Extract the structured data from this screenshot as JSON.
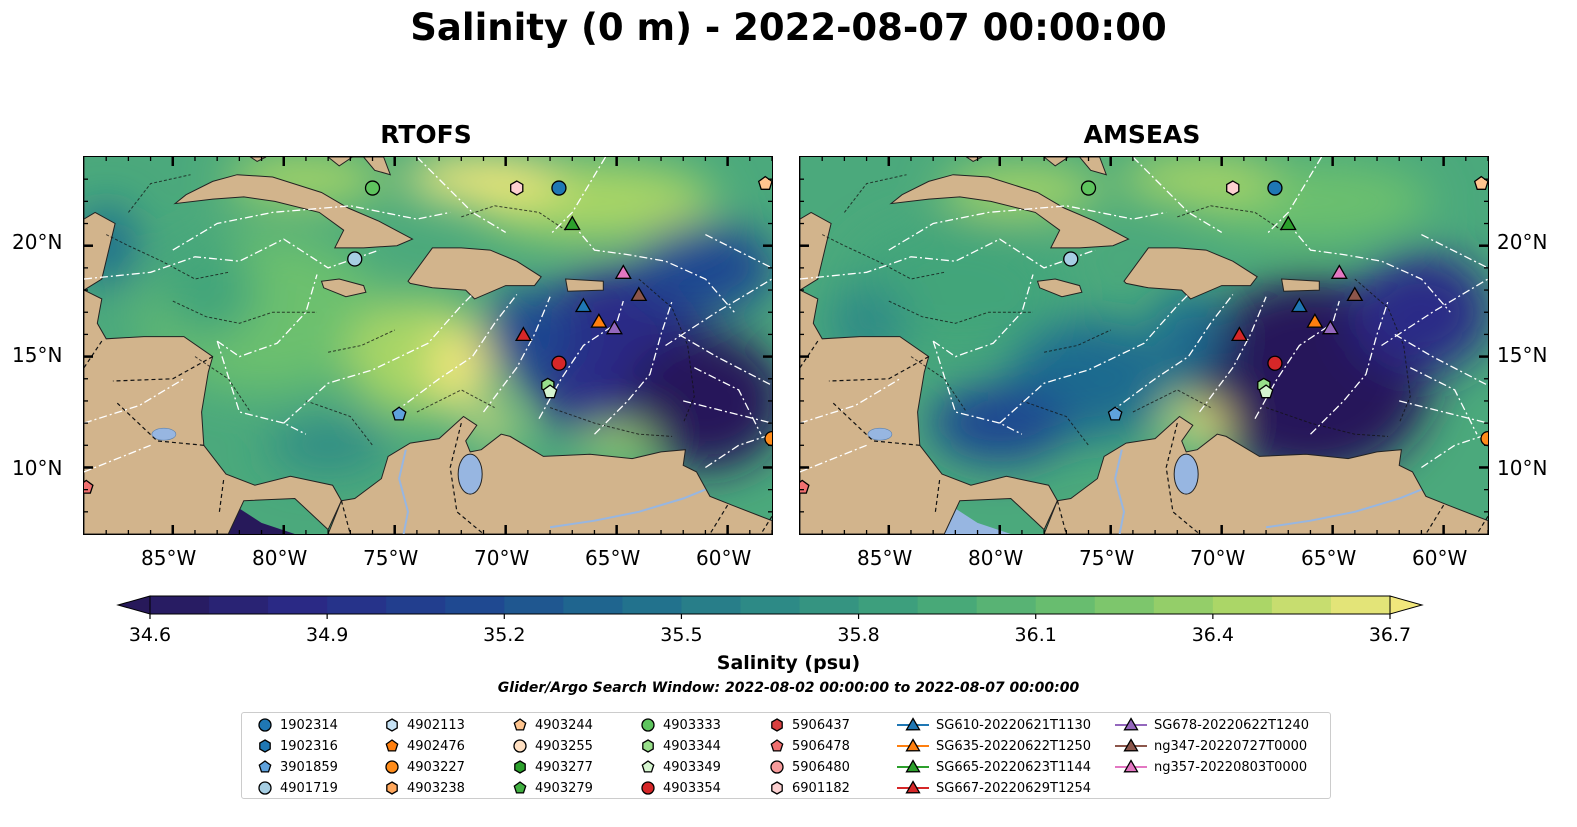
{
  "title": "Salinity (0 m) - 2022-08-07 00:00:00",
  "panels": [
    {
      "title": "RTOFS",
      "variant": "rtofs"
    },
    {
      "title": "AMSEAS",
      "variant": "amseas"
    }
  ],
  "lat_ticks": [
    "20°N",
    "15°N",
    "10°N"
  ],
  "lon_ticks": [
    "85°W",
    "80°W",
    "75°W",
    "70°W",
    "65°W",
    "60°W"
  ],
  "colorbar": {
    "label": "Salinity (psu)",
    "min": 34.6,
    "max": 36.7,
    "tick_labels": [
      "34.6",
      "34.9",
      "35.2",
      "35.5",
      "35.8",
      "36.1",
      "36.4",
      "36.7"
    ],
    "colormap": [
      "#27195a",
      "#2a2a87",
      "#1f4691",
      "#1f6a8f",
      "#2d8a86",
      "#42a57a",
      "#6cc06e",
      "#a8d566",
      "#f1e77c"
    ],
    "extend": "both"
  },
  "search_window": "Glider/Argo Search Window: 2022-08-02 00:00:00 to 2022-08-07 00:00:00",
  "colors": {
    "land": "#d2b48c",
    "lake": "#97b6e1",
    "boundary": "#ffffff"
  },
  "legend": {
    "columns": [
      [
        {
          "label": "1902314",
          "marker": "circle",
          "color": "#1f77b4"
        },
        {
          "label": "1902316",
          "marker": "hexagon",
          "color": "#1f77b4"
        },
        {
          "label": "3901859",
          "marker": "pentagon",
          "color": "#5fa2dd"
        },
        {
          "label": "4901719",
          "marker": "circle",
          "color": "#a6cee3"
        }
      ],
      [
        {
          "label": "4902113",
          "marker": "hexagon",
          "color": "#c6e2f5"
        },
        {
          "label": "4902476",
          "marker": "pentagon",
          "color": "#ff7f0e"
        },
        {
          "label": "4903227",
          "marker": "circle",
          "color": "#ff8c1a"
        },
        {
          "label": "4903238",
          "marker": "hexagon",
          "color": "#ffa75c"
        }
      ],
      [
        {
          "label": "4903244",
          "marker": "pentagon",
          "color": "#ffc58f"
        },
        {
          "label": "4903255",
          "marker": "circle",
          "color": "#ffe0c2"
        },
        {
          "label": "4903277",
          "marker": "hexagon",
          "color": "#2ca02c"
        },
        {
          "label": "4903279",
          "marker": "pentagon",
          "color": "#41b041"
        }
      ],
      [
        {
          "label": "4903333",
          "marker": "circle",
          "color": "#5ec45e"
        },
        {
          "label": "4903344",
          "marker": "hexagon",
          "color": "#98df8a"
        },
        {
          "label": "4903349",
          "marker": "pentagon",
          "color": "#d5f5cf"
        },
        {
          "label": "4903354",
          "marker": "circle",
          "color": "#d62728"
        }
      ],
      [
        {
          "label": "5906437",
          "marker": "hexagon",
          "color": "#d94040"
        },
        {
          "label": "5906478",
          "marker": "pentagon",
          "color": "#f07070"
        },
        {
          "label": "5906480",
          "marker": "circle",
          "color": "#f79b9b"
        },
        {
          "label": "6901182",
          "marker": "hexagon",
          "color": "#fcd0d0"
        }
      ],
      [
        {
          "label": "SG610-20220621T1130",
          "marker": "triangle",
          "color": "#1f77b4"
        },
        {
          "label": "SG635-20220622T1250",
          "marker": "triangle",
          "color": "#ff7f0e"
        },
        {
          "label": "SG665-20220623T1144",
          "marker": "triangle",
          "color": "#2ca02c"
        },
        {
          "label": "SG667-20220629T1254",
          "marker": "triangle",
          "color": "#d62728"
        }
      ],
      [
        {
          "label": "SG678-20220622T1240",
          "marker": "triangle",
          "color": "#9467bd"
        },
        {
          "label": "ng347-20220727T0000",
          "marker": "triangle",
          "color": "#8c564b"
        },
        {
          "label": "ng357-20220803T0000",
          "marker": "triangle",
          "color": "#e377c2"
        }
      ]
    ]
  }
}
